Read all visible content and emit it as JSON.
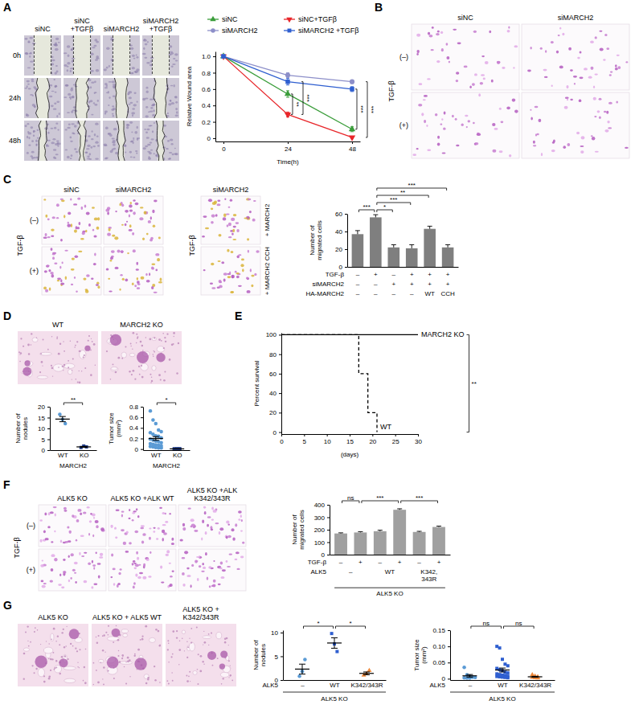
{
  "chart_data": [
    {
      "panel": "A",
      "type": "image_grid",
      "columns": [
        "siNC",
        "siNC +TGFβ",
        "siMARCH2",
        "siMARCH2 +TGFβ"
      ],
      "rows": [
        "0h",
        "24h",
        "48h"
      ]
    },
    {
      "type": "line",
      "x": [
        0,
        24,
        48
      ],
      "xlim": [
        -3,
        51
      ],
      "xticks": [
        0,
        24,
        48
      ],
      "ylim": [
        -0.04,
        1.06
      ],
      "yticks": [
        0,
        0.2,
        0.4,
        0.6,
        0.8,
        {
          "value": 1,
          "label": "1.0"
        }
      ],
      "x_label": "Time(h)",
      "y_label": "Relative Wound area",
      "legend": "top",
      "series": [
        {
          "name": "siNC",
          "color": "#3a9d3a",
          "marker": "triangle",
          "values": [
            1,
            0.54,
            0.11
          ],
          "errors": [
            0,
            0.04,
            0.03
          ]
        },
        {
          "name": "siNC+TGFβ",
          "color": "#e8262a",
          "marker": "triangle-down",
          "values": [
            1,
            0.29,
            0.01
          ],
          "errors": [
            0,
            0.03,
            0.01
          ]
        },
        {
          "name": "siMARCH2",
          "color": "#8d8fc9",
          "marker": "circle",
          "values": [
            1,
            0.77,
            0.69
          ],
          "errors": [
            0,
            0.03,
            0.02
          ]
        },
        {
          "name": "siMARCH2 +TGFβ",
          "color": "#2f5fd0",
          "marker": "square",
          "values": [
            1,
            0.69,
            0.6
          ],
          "errors": [
            0,
            0.04,
            0.03
          ]
        }
      ],
      "annotations": [
        {
          "text": "**",
          "x": 24,
          "y": [
            0.29,
            0.54
          ]
        },
        {
          "text": "***",
          "x": 24,
          "y": [
            0.29,
            0.69
          ]
        },
        {
          "text": "***",
          "x": 48,
          "y": [
            0.11,
            0.6
          ]
        },
        {
          "text": "***",
          "x": 48,
          "y": [
            0.01,
            0.69
          ]
        }
      ]
    },
    {
      "panel": "B",
      "type": "image_grid",
      "columns": [
        "siNC",
        "siMARCH2"
      ],
      "row_title": "TGF-β",
      "rows": [
        "(–)",
        "(+)"
      ]
    },
    {
      "panel": "C",
      "type": "image_grid",
      "columns": [
        "siNC",
        "siMARCH2"
      ],
      "row_title": "TGF-β",
      "rows": [
        "(–)",
        "(+)"
      ]
    },
    {
      "type": "image_grid",
      "columns": [
        "siMARCH2"
      ],
      "row_title": "TGF-β",
      "rows": [
        "+ MARCH2",
        "+ MARCH2 CCH"
      ]
    },
    {
      "type": "bar",
      "y_label": "Number of migrated cells",
      "ylim": [
        0,
        60
      ],
      "yticks": [
        0,
        20,
        40,
        60
      ],
      "values": [
        37,
        56,
        22,
        21,
        43,
        22
      ],
      "errors": [
        4,
        3,
        3,
        4,
        3,
        3
      ],
      "color": "#7f7f7f",
      "table": [
        {
          "label": "TGF-β",
          "cells": [
            "–",
            "+",
            "–",
            "+",
            "+",
            "+"
          ]
        },
        {
          "label": "siMARCH2",
          "cells": [
            "–",
            "–",
            "+",
            "+",
            "+",
            "+"
          ]
        },
        {
          "label": "HA-MARCH2",
          "cells": [
            "–",
            "–",
            "–",
            "–",
            "WT",
            "CCH"
          ]
        }
      ],
      "comparisons": [
        {
          "between": [
            0,
            1
          ],
          "text": "***"
        },
        {
          "between": [
            1,
            2
          ],
          "text": "*"
        },
        {
          "between": [
            1,
            3
          ],
          "text": "***"
        },
        {
          "between": [
            1,
            4
          ],
          "text": "**"
        },
        {
          "between": [
            1,
            5
          ],
          "text": "***"
        }
      ]
    },
    {
      "panel": "D",
      "type": "image_grid",
      "columns": [
        "WT",
        "MARCH2 KO"
      ]
    },
    {
      "type": "dot_plot",
      "y_label": "Number of nodules",
      "ylim": [
        0,
        20
      ],
      "yticks": [
        0,
        5,
        10,
        15,
        20
      ],
      "footer": "MARCH2",
      "series": [
        {
          "name": "WT",
          "color": "#5b9bd5",
          "marker": "circle",
          "values": [
            16.5,
            14.2,
            12.2
          ],
          "mean": 14.3,
          "sem": 1.2
        },
        {
          "name": "KO",
          "color": "#1f3c88",
          "marker": "square",
          "values": [
            1.2,
            1.9,
            1.5
          ],
          "mean": 1.5,
          "sem": 0.2
        }
      ],
      "comparisons": [
        {
          "between": [
            0,
            1
          ],
          "text": "**"
        }
      ]
    },
    {
      "type": "dot_plot",
      "y_label": "Tumor size (mm²)",
      "ylim": [
        -0.02,
        0.8
      ],
      "yticks": [
        0,
        0.2,
        0.4,
        0.6,
        0.8
      ],
      "footer": "MARCH2",
      "series": [
        {
          "name": "WT",
          "color": "#5b9bd5",
          "marker": "circle",
          "values": [
            0.72,
            0.55,
            0.48,
            0.36,
            0.33,
            0.31,
            0.28,
            0.25,
            0.24,
            0.21,
            0.19,
            0.17,
            0.15,
            0.14,
            0.12,
            0.1,
            0.09,
            0.08,
            0.07,
            0.06,
            0.05,
            0.04,
            0.03,
            0.02,
            0.02
          ],
          "mean": 0.2,
          "sem": 0.035
        },
        {
          "name": "KO",
          "color": "#1f3c88",
          "marker": "square",
          "values": [
            0.004,
            0.003,
            0.005,
            0.002,
            0.006,
            0.003
          ],
          "mean": 0.004,
          "sem": 0.001
        }
      ],
      "comparisons": [
        {
          "between": [
            0,
            1
          ],
          "text": "*"
        }
      ]
    },
    {
      "panel": "E",
      "type": "line",
      "x_label": "(days)",
      "y_label": "Percent survival",
      "xlim": [
        0,
        30
      ],
      "xticks": [
        0,
        5,
        10,
        15,
        20,
        25,
        30
      ],
      "ylim": [
        -2,
        102
      ],
      "yticks": [
        0,
        20,
        40,
        60,
        80,
        100
      ],
      "series": [
        {
          "name": "MARCH2 KO",
          "type": "step",
          "color": "#000000",
          "line_style": "solid",
          "x": [
            0,
            30
          ],
          "values": [
            100,
            100
          ]
        },
        {
          "name": "WT",
          "type": "step",
          "color": "#000000",
          "line_style": "dashed",
          "x": [
            0,
            17,
            19,
            21
          ],
          "values": [
            100,
            60,
            20,
            0
          ]
        }
      ],
      "annotations": [
        {
          "text": "**",
          "between": [
            0,
            1
          ]
        }
      ]
    },
    {
      "panel": "F",
      "type": "image_grid",
      "columns": [
        "ALK5 KO",
        "ALK5 KO +ALK WT",
        "ALK5 KO +ALK K342/343R"
      ],
      "row_title": "TGF-β",
      "rows": [
        "(–)",
        "(+)"
      ]
    },
    {
      "type": "bar",
      "y_label": "Number of migrated cells",
      "ylim": [
        0,
        400
      ],
      "yticks": [
        0,
        100,
        200,
        300,
        400
      ],
      "values": [
        170,
        178,
        188,
        360,
        182,
        222
      ],
      "errors": [
        5,
        6,
        8,
        8,
        5,
        7
      ],
      "color": "#a0a0a0",
      "table": [
        {
          "label": "TGF-β",
          "cells": [
            "–",
            "+",
            "–",
            "+",
            "–",
            "+"
          ]
        }
      ],
      "groups": {
        "label": "ALK5",
        "items": [
          {
            "text": "–",
            "span": [
              0,
              1
            ]
          },
          {
            "text": "WT",
            "span": [
              2,
              3
            ]
          },
          {
            "text": "K342, 343R",
            "span": [
              4,
              5
            ]
          }
        ]
      },
      "footer": "ALK5 KO",
      "comparisons": [
        {
          "between": [
            0,
            1
          ],
          "text": "ns"
        },
        {
          "between": [
            1,
            3
          ],
          "text": "***"
        },
        {
          "between": [
            3,
            5
          ],
          "text": "***"
        }
      ]
    },
    {
      "panel": "G",
      "type": "image_grid",
      "columns": [
        "ALK5 KO",
        "ALK5 KO + ALK5 WT",
        "ALK5 KO + K342/343R"
      ]
    },
    {
      "type": "dot_plot",
      "y_label": "Number of nodules",
      "ylim": [
        0,
        10.5
      ],
      "yticks": [
        0,
        5,
        10
      ],
      "row_title": "ALK5",
      "footer": "ALK5 KO",
      "series": [
        {
          "name": "–",
          "color": "#5b9bd5",
          "marker": "circle",
          "values": [
            0.8,
            1.8,
            4.3
          ],
          "mean": 2.3,
          "sem": 1.05
        },
        {
          "name": "WT",
          "color": "#2f5fd0",
          "marker": "square",
          "values": [
            9.8,
            7.6,
            6.0
          ],
          "mean": 7.8,
          "sem": 1.1
        },
        {
          "name": "K342/343R",
          "color": "#f08a3c",
          "marker": "triangle",
          "values": [
            1.0,
            1.3,
            2.0
          ],
          "mean": 1.4,
          "sem": 0.3
        }
      ],
      "comparisons": [
        {
          "between": [
            0,
            1
          ],
          "text": "*"
        },
        {
          "between": [
            1,
            2
          ],
          "text": "*"
        }
      ]
    },
    {
      "type": "dot_plot",
      "y_label": "Tumor size (mm²)",
      "ylim": [
        -0.004,
        0.15
      ],
      "yticks": [
        0,
        0.05,
        {
          "value": 0.1,
          "label": "0.10"
        },
        0.15
      ],
      "row_title": "ALK5",
      "footer": "ALK5 KO",
      "series": [
        {
          "name": "–",
          "color": "#5b9bd5",
          "marker": "circle",
          "values": [
            0.035,
            0.012,
            0.008,
            0.005,
            0.004,
            0.003,
            0.002,
            0.002
          ],
          "mean": 0.009,
          "sem": 0.004
        },
        {
          "name": "WT",
          "color": "#2f5fd0",
          "marker": "square",
          "values": [
            0.1,
            0.095,
            0.06,
            0.045,
            0.04,
            0.032,
            0.028,
            0.025,
            0.02,
            0.018,
            0.015,
            0.013,
            0.011,
            0.01,
            0.008,
            0.007,
            0.006,
            0.005,
            0.004,
            0.003
          ],
          "mean": 0.027,
          "sem": 0.006
        },
        {
          "name": "K342/343R",
          "color": "#f08a3c",
          "marker": "triangle",
          "values": [
            0.012,
            0.008,
            0.006,
            0.004,
            0.003,
            0.002
          ],
          "mean": 0.006,
          "sem": 0.0015
        }
      ],
      "comparisons": [
        {
          "between": [
            0,
            1
          ],
          "text": "ns"
        },
        {
          "between": [
            1,
            2
          ],
          "text": "ns"
        }
      ]
    }
  ]
}
